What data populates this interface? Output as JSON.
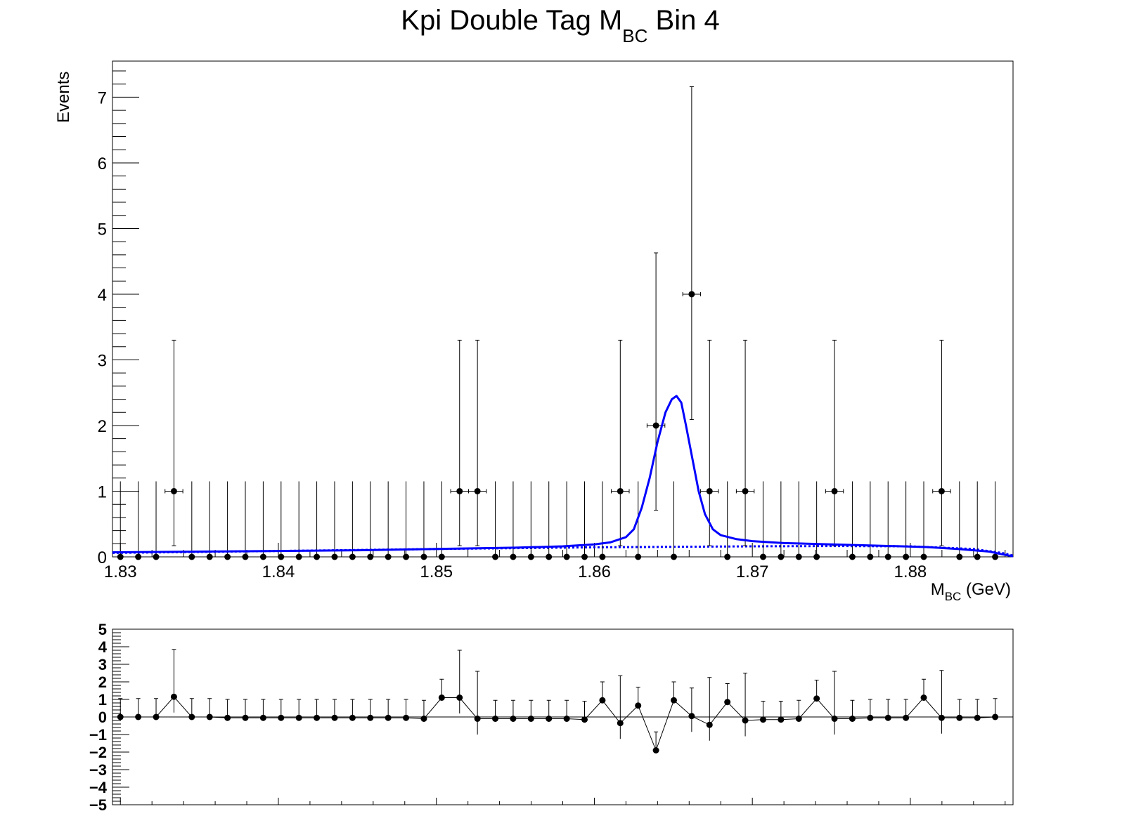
{
  "chart_data": [
    {
      "type": "scatter",
      "title": "Kpi Double Tag M",
      "title_sub": "BC",
      "title_suffix": " Bin 4",
      "xlabel": "M",
      "xlabel_sub": "BC",
      "xlabel_suffix": " (GeV)",
      "ylabel": "Events",
      "xlim": [
        1.8295,
        1.8865
      ],
      "ylim": [
        0,
        7.55
      ],
      "x_ticks": [
        "1.83",
        "1.84",
        "1.85",
        "1.86",
        "1.87",
        "1.88"
      ],
      "y_ticks": [
        "0",
        "1",
        "2",
        "3",
        "4",
        "5",
        "6",
        "7"
      ],
      "bin_width": 0.00113,
      "series": [
        {
          "style": "data-points",
          "x": [
            1.83,
            1.83113,
            1.83226,
            1.83339,
            1.83452,
            1.83565,
            1.83678,
            1.83791,
            1.83904,
            1.84017,
            1.8413,
            1.84243,
            1.84356,
            1.84469,
            1.84582,
            1.84695,
            1.84808,
            1.84921,
            1.85034,
            1.85147,
            1.8526,
            1.85373,
            1.85486,
            1.85599,
            1.85712,
            1.85825,
            1.85938,
            1.86051,
            1.86164,
            1.86277,
            1.8639,
            1.86503,
            1.86616,
            1.86729,
            1.86842,
            1.86955,
            1.87068,
            1.87181,
            1.87294,
            1.87407,
            1.8752,
            1.87633,
            1.87746,
            1.87859,
            1.87972,
            1.88085,
            1.88198,
            1.88311,
            1.88424,
            1.88537
          ],
          "y": [
            0,
            0,
            0,
            1,
            0,
            0,
            0,
            0,
            0,
            0,
            0,
            0,
            0,
            0,
            0,
            0,
            0,
            0,
            0,
            1,
            1,
            0,
            0,
            0,
            0,
            0,
            0,
            0,
            1,
            0,
            2,
            0,
            4,
            1,
            0,
            1,
            0,
            0,
            0,
            0,
            1,
            0,
            0,
            0,
            0,
            0,
            1,
            0,
            0,
            0
          ]
        },
        {
          "style": "fit-total",
          "color": "#0000ff",
          "x": [
            1.8295,
            1.835,
            1.84,
            1.845,
            1.85,
            1.855,
            1.858,
            1.86,
            1.861,
            1.862,
            1.8625,
            1.863,
            1.8635,
            1.864,
            1.8645,
            1.8649,
            1.8652,
            1.8655,
            1.8658,
            1.8662,
            1.8666,
            1.867,
            1.8675,
            1.868,
            1.869,
            1.87,
            1.872,
            1.875,
            1.878,
            1.881,
            1.883,
            1.885,
            1.8858,
            1.8865
          ],
          "y": [
            0.07,
            0.08,
            0.09,
            0.1,
            0.12,
            0.14,
            0.16,
            0.19,
            0.22,
            0.3,
            0.42,
            0.75,
            1.2,
            1.75,
            2.2,
            2.4,
            2.45,
            2.35,
            2.0,
            1.5,
            1.0,
            0.65,
            0.42,
            0.33,
            0.27,
            0.24,
            0.21,
            0.19,
            0.17,
            0.15,
            0.12,
            0.08,
            0.04,
            0.01
          ]
        },
        {
          "style": "fit-background",
          "color": "#0000ff",
          "x": [
            1.8295,
            1.84,
            1.85,
            1.86,
            1.87,
            1.875,
            1.88,
            1.884,
            1.8858,
            1.8865
          ],
          "y": [
            0.06,
            0.09,
            0.12,
            0.145,
            0.16,
            0.165,
            0.16,
            0.12,
            0.06,
            0.02
          ]
        }
      ]
    },
    {
      "type": "line",
      "xlim": [
        1.8295,
        1.8865
      ],
      "ylim": [
        -5,
        5
      ],
      "y_ticks": [
        "5",
        "4",
        "3",
        "2",
        "1",
        "0",
        "−1",
        "−2",
        "−3",
        "−4",
        "−5"
      ],
      "series": [
        {
          "style": "pull-points",
          "y": [
            0,
            0,
            0,
            1.15,
            0,
            0,
            -0.05,
            -0.05,
            -0.05,
            -0.05,
            -0.05,
            -0.05,
            -0.05,
            -0.05,
            -0.05,
            -0.05,
            -0.05,
            -0.1,
            1.1,
            1.1,
            -0.1,
            -0.1,
            -0.1,
            -0.1,
            -0.1,
            -0.1,
            -0.15,
            0.95,
            -0.35,
            0.65,
            -1.9,
            0.95,
            0.05,
            -0.45,
            0.85,
            -0.2,
            -0.15,
            -0.15,
            -0.1,
            1.05,
            -0.1,
            -0.1,
            -0.05,
            -0.05,
            -0.05,
            1.1,
            -0.05,
            -0.05,
            -0.05,
            0
          ]
        }
      ]
    }
  ]
}
